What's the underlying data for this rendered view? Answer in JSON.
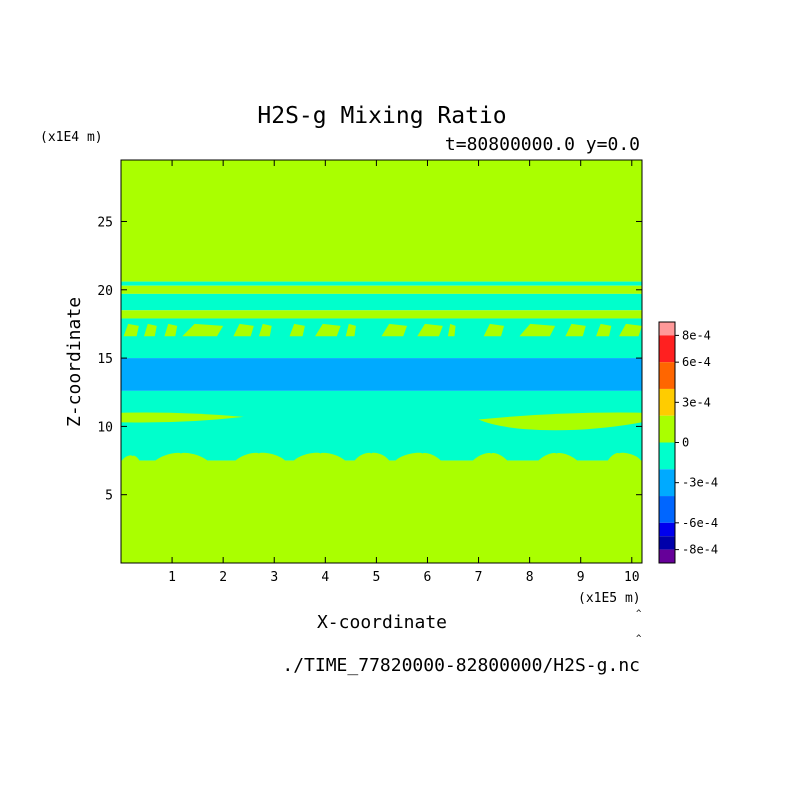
{
  "chart_data": {
    "type": "heatmap",
    "title": "H2S-g Mixing Ratio",
    "subtitle": "t=80800000.0 y=0.0",
    "xlabel": "X-coordinate",
    "ylabel": "Z-coordinate",
    "x_unit": "(x1E5 m)",
    "y_unit": "(x1E4 m)",
    "xlim": [
      0,
      10.2
    ],
    "ylim": [
      0,
      29.5
    ],
    "x_ticks": [
      1,
      2,
      3,
      4,
      5,
      6,
      7,
      8,
      9,
      10
    ],
    "y_ticks": [
      5,
      10,
      15,
      20,
      25
    ],
    "filename": "./TIME_77820000-82800000/H2S-g.nc",
    "colorbar": {
      "levels": [
        "8e-4",
        "6e-4",
        "3e-4",
        "0",
        "-3e-4",
        "-6e-4",
        "-8e-4"
      ],
      "level_values": [
        0.0008,
        0.0006,
        0.0003,
        0,
        -0.0003,
        -0.0006,
        -0.0008
      ],
      "bins": [
        {
          "low": 0.0008,
          "high": 0.0009,
          "color": "#ff9999"
        },
        {
          "low": 0.0006,
          "high": 0.0008,
          "color": "#ff2020"
        },
        {
          "low": 0.0004,
          "high": 0.0006,
          "color": "#ff6600"
        },
        {
          "low": 0.0002,
          "high": 0.0004,
          "color": "#ffcc00"
        },
        {
          "low": 0.0,
          "high": 0.0002,
          "color": "#aaff00"
        },
        {
          "low": -0.0002,
          "high": 0.0,
          "color": "#00ffcc"
        },
        {
          "low": -0.0004,
          "high": -0.0002,
          "color": "#00aaff"
        },
        {
          "low": -0.0006,
          "high": -0.0004,
          "color": "#0066ff"
        },
        {
          "low": -0.0007,
          "high": -0.0006,
          "color": "#0000ee"
        },
        {
          "low": -0.0008,
          "high": -0.0007,
          "color": "#0000aa"
        },
        {
          "low": -0.0009,
          "high": -0.0008,
          "color": "#660099"
        }
      ]
    },
    "field_bands": [
      {
        "z_from": 20.6,
        "z_to": 29.5,
        "color": "#aaff00"
      },
      {
        "z_from": 20.3,
        "z_to": 20.6,
        "color": "#00ffcc"
      },
      {
        "z_from": 19.7,
        "z_to": 20.3,
        "color": "#aaff00"
      },
      {
        "z_from": 18.5,
        "z_to": 19.7,
        "color": "#00ffcc"
      },
      {
        "z_from": 17.9,
        "z_to": 18.5,
        "color": "#aaff00"
      },
      {
        "z_from": 15.0,
        "z_to": 17.9,
        "color": "#00ffcc"
      },
      {
        "z_from": 12.6,
        "z_to": 15.0,
        "color": "#00aaff"
      },
      {
        "z_from": 7.5,
        "z_to": 12.6,
        "color": "#00ffcc"
      },
      {
        "z_from": 0.0,
        "z_to": 7.5,
        "color": "#aaff00"
      }
    ],
    "colors": {
      "positive_small": "#aaff00",
      "negative_small": "#00ffcc",
      "negative_mid": "#00aaff"
    }
  }
}
